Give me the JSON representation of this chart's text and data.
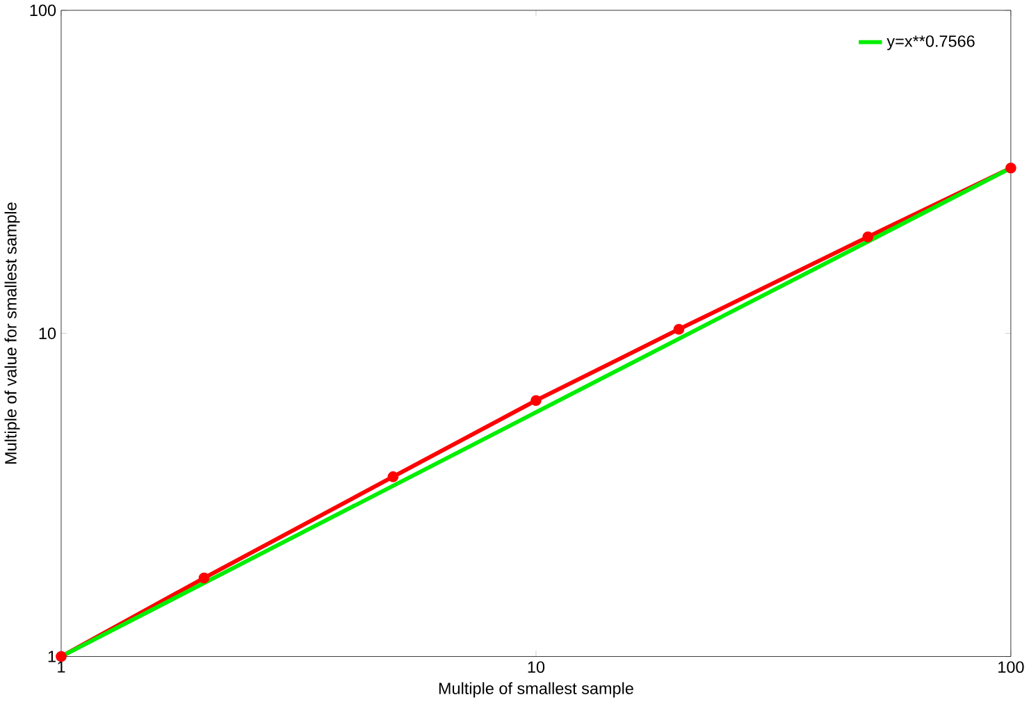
{
  "chart_data": {
    "type": "line",
    "xlabel": "Multiple of smallest sample",
    "ylabel": "Multiple of value for smallest sample",
    "log": "xy",
    "xlim": [
      1,
      100
    ],
    "ylim": [
      1,
      100
    ],
    "xticks": [
      1,
      10,
      100
    ],
    "yticks": [
      1,
      10,
      100
    ],
    "grid": false,
    "legend": "top right",
    "series": [
      {
        "color": "#ff0000",
        "marker": "circle",
        "x": [
          1,
          2,
          5,
          10,
          20,
          50,
          100
        ],
        "values": [
          1,
          1.75,
          3.6,
          6.2,
          10.3,
          19.9,
          32.5
        ]
      },
      {
        "name": "y=x**0.7566",
        "color": "#00ee00",
        "marker": "none",
        "x": [
          1,
          10,
          100
        ],
        "values": [
          1,
          5.7,
          32.5
        ]
      }
    ]
  }
}
